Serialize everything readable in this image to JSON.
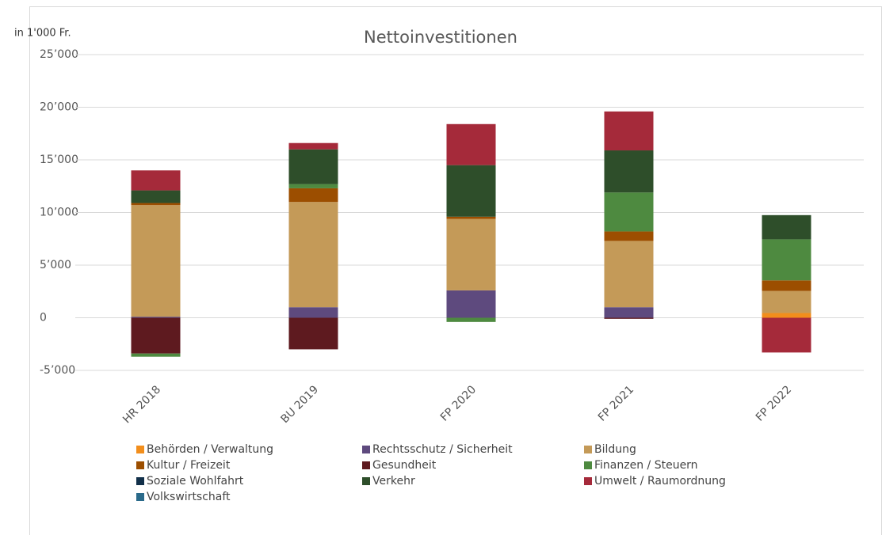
{
  "chart_data": {
    "type": "stacked-bar",
    "title": "Nettoinvestitionen",
    "y_unit": "in 1'000 Fr.",
    "categories": [
      "HR 2018",
      "BU 2019",
      "FP 2020",
      "FP 2021",
      "FP 2022"
    ],
    "series": [
      {
        "name": "Behörden / Verwaltung",
        "color": "#f28e1c",
        "values": [
          0,
          0,
          0,
          0,
          450
        ]
      },
      {
        "name": "Rechtsschutz / Sicherheit",
        "color": "#5e4a7e",
        "values": [
          100,
          1000,
          2600,
          1000,
          0
        ]
      },
      {
        "name": "Bildung",
        "color": "#c49a58",
        "values": [
          10600,
          10000,
          6800,
          6300,
          2100
        ]
      },
      {
        "name": "Kultur / Freizeit",
        "color": "#9c4e00",
        "values": [
          200,
          1300,
          200,
          900,
          1000
        ]
      },
      {
        "name": "Gesundheit",
        "color": "#5e1a1f",
        "values": [
          -3400,
          -3000,
          0,
          -100,
          0
        ]
      },
      {
        "name": "Finanzen / Steuern",
        "color": "#4e8a40",
        "values": [
          -300,
          400,
          -400,
          3700,
          3900
        ]
      },
      {
        "name": "Soziale Wohlfahrt",
        "color": "#12304a",
        "values": [
          0,
          0,
          0,
          0,
          0
        ]
      },
      {
        "name": "Verkehr",
        "color": "#2e4e2a",
        "values": [
          1200,
          3300,
          4900,
          4000,
          2300
        ]
      },
      {
        "name": "Umwelt / Raumordnung",
        "color": "#a52a3a",
        "values": [
          1900,
          600,
          3900,
          3700,
          -3300
        ]
      },
      {
        "name": "Volkswirtschaft",
        "color": "#2a6a8a",
        "values": [
          0,
          0,
          0,
          0,
          0
        ]
      }
    ],
    "ylim": [
      -5000,
      25000
    ],
    "yticks": [
      {
        "value": -5000,
        "label": "-5’000"
      },
      0,
      {
        "value": 5000,
        "label": "5’000"
      },
      {
        "value": 10000,
        "label": "10’000"
      },
      {
        "value": 15000,
        "label": "15’000"
      },
      {
        "value": 20000,
        "label": "20’000"
      },
      {
        "value": 25000,
        "label": "25’000"
      }
    ],
    "grid": true,
    "legend": "bottom"
  }
}
